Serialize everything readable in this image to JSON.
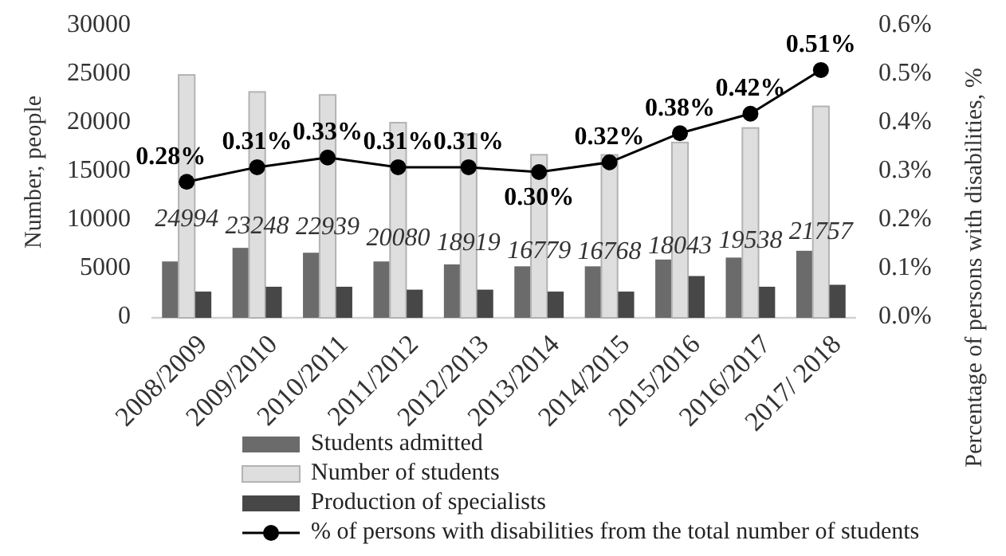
{
  "chart_data": {
    "type": "bar",
    "ylabel": "Number, people",
    "y2label": "Percentage of persons with disabilities, %",
    "categories": [
      "2008/2009",
      "2009/2010",
      "2010/2011",
      "2011/2012",
      "2012/2013",
      "2013/2014",
      "2014/2015",
      "2015/2016",
      "2016/2017",
      "2017/ 2018"
    ],
    "series": [
      {
        "name": "Students admitted",
        "color": "#6b6b6b",
        "values": [
          5800,
          7200,
          6700,
          5800,
          5500,
          5300,
          5300,
          6000,
          6200,
          6900
        ]
      },
      {
        "name": "Number of students",
        "color": "#dedede",
        "values": [
          24994,
          23248,
          22939,
          20080,
          18919,
          16779,
          16768,
          18043,
          19538,
          21757
        ],
        "value_labels": [
          "24994",
          "23248",
          "22939",
          "20080",
          "18919",
          "16779",
          "16768",
          "18043",
          "19538",
          "21757"
        ]
      },
      {
        "name": "Production of specialists",
        "color": "#474747",
        "values": [
          2700,
          3200,
          3200,
          2900,
          2900,
          2700,
          2700,
          4300,
          3200,
          3400
        ]
      },
      {
        "name": "% of persons with disabilities from the total number of students",
        "type": "line",
        "axis": "y2",
        "color": "#000000",
        "marker": "circle",
        "line_style": "solid",
        "values": [
          0.28,
          0.31,
          0.33,
          0.31,
          0.31,
          0.3,
          0.32,
          0.38,
          0.42,
          0.51
        ],
        "value_labels": [
          "0.28%",
          "0.31%",
          "0.33%",
          "0.31%",
          "0.31%",
          "0.30%",
          "0.32%",
          "0.38%",
          "0.42%",
          "0.51%"
        ]
      }
    ],
    "ylim": [
      0,
      30000
    ],
    "yticks": [
      0,
      5000,
      10000,
      15000,
      20000,
      25000,
      30000
    ],
    "y2lim": [
      0,
      0.6
    ],
    "y2ticks": [
      {
        "value": 0,
        "label": "0.0%"
      },
      {
        "value": 0.1,
        "label": "0.1%"
      },
      {
        "value": 0.2,
        "label": "0.2%"
      },
      {
        "value": 0.3,
        "label": "0.3%"
      },
      {
        "value": 0.4,
        "label": "0.4%"
      },
      {
        "value": 0.5,
        "label": "0.5%"
      },
      {
        "value": 0.6,
        "label": "0.6%"
      }
    ],
    "legend": "bottom"
  }
}
